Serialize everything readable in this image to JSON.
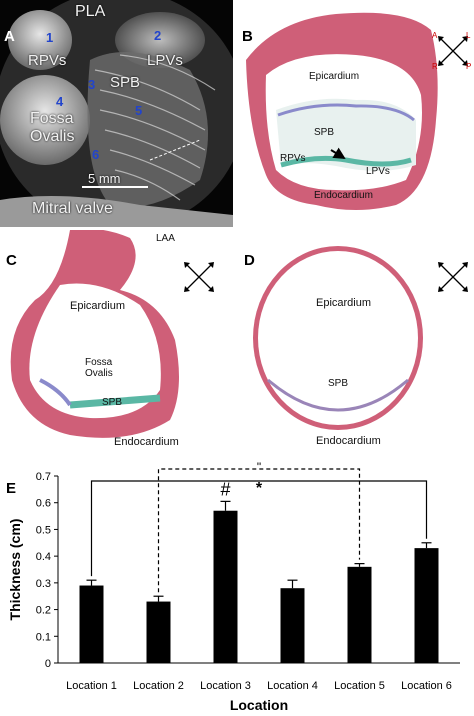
{
  "panels": {
    "a": {
      "letter": "A",
      "labels": {
        "pla": "PLA",
        "rpvs": "RPVs",
        "lpvs": "LPVs",
        "spb": "SPB",
        "fossa": "Fossa",
        "ovalis": "Ovalis",
        "scale": "5 mm",
        "mitral": "Mitral valve"
      },
      "numbers": [
        "1",
        "2",
        "3",
        "4",
        "5",
        "6"
      ]
    },
    "b": {
      "letter": "B",
      "labels": {
        "epicardium": "Epicardium",
        "spb": "SPB",
        "rpvs": "RPVs",
        "lpvs": "LPVs",
        "endocardium": "Endocardium"
      }
    },
    "c": {
      "letter": "C",
      "labels": {
        "laa": "LAA",
        "epicardium": "Epicardium",
        "fossa": "Fossa",
        "ovalis": "Ovalis",
        "spb": "SPB",
        "endocardium": "Endocardium"
      }
    },
    "d": {
      "letter": "D",
      "labels": {
        "epicardium": "Epicardium",
        "spb": "SPB",
        "endocardium": "Endocardium"
      }
    },
    "compass": {
      "a": "A",
      "p": "P",
      "l": "L",
      "r": "R"
    },
    "e": {
      "letter": "E"
    }
  },
  "chart_data": {
    "type": "bar",
    "title": "",
    "xlabel": "Location",
    "ylabel": "Thickness (cm)",
    "ylim": [
      0,
      0.7
    ],
    "yticks": [
      "0",
      "0.1",
      "0.2",
      "0.3",
      "0.4",
      "0.5",
      "0.6",
      "0.7"
    ],
    "categories": [
      "Location 1",
      "Location 2",
      "Location 3",
      "Location 4",
      "Location 5",
      "Location 6"
    ],
    "values": [
      0.29,
      0.23,
      0.57,
      0.28,
      0.36,
      0.43
    ],
    "errors": [
      0.02,
      0.02,
      0.035,
      0.03,
      0.012,
      0.02
    ],
    "bar_color": "#000000",
    "annotations": {
      "hash": "#",
      "star": "*",
      "double_tick": "\""
    }
  }
}
